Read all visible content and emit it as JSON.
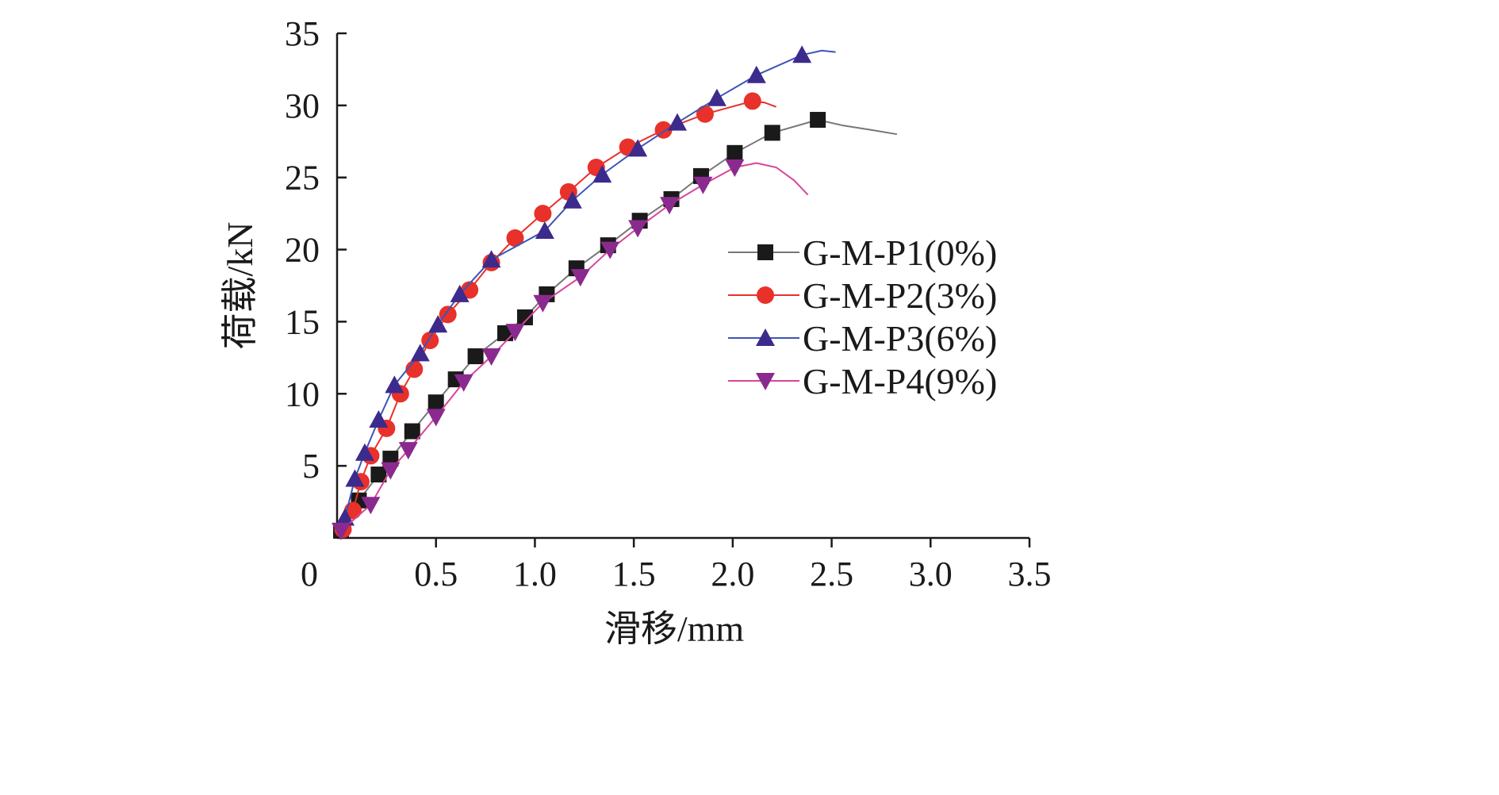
{
  "chart_data": {
    "type": "line",
    "title": "",
    "xlabel": "滑移/mm",
    "ylabel": "荷载/kN",
    "xlim": [
      0,
      3.5
    ],
    "ylim": [
      0,
      35
    ],
    "origin_label": "0",
    "x_ticks": [
      {
        "value": 0.5,
        "label": "0.5"
      },
      {
        "value": 1.0,
        "label": "1.0"
      },
      {
        "value": 1.5,
        "label": "1.5"
      },
      {
        "value": 2.0,
        "label": "2.0"
      },
      {
        "value": 2.5,
        "label": "2.5"
      },
      {
        "value": 3.0,
        "label": "3.0"
      },
      {
        "value": 3.5,
        "label": "3.5"
      }
    ],
    "y_ticks": [
      {
        "value": 5,
        "label": "5"
      },
      {
        "value": 10,
        "label": "10"
      },
      {
        "value": 15,
        "label": "15"
      },
      {
        "value": 20,
        "label": "20"
      },
      {
        "value": 25,
        "label": "25"
      },
      {
        "value": 30,
        "label": "30"
      },
      {
        "value": 35,
        "label": "35"
      }
    ],
    "grid": false,
    "legend_position": "right",
    "series": [
      {
        "name": "G-M-P1(0%)",
        "color": "#1a1a1a",
        "line_color": "#777777",
        "marker": "square",
        "x": [
          0.02,
          0.11,
          0.21,
          0.27,
          0.38,
          0.5,
          0.6,
          0.7,
          0.85,
          0.95,
          1.06,
          1.21,
          1.37,
          1.53,
          1.69,
          1.84,
          2.01,
          2.2,
          2.43
        ],
        "y": [
          0.5,
          2.6,
          4.4,
          5.5,
          7.4,
          9.4,
          11.0,
          12.6,
          14.2,
          15.3,
          16.9,
          18.7,
          20.3,
          22.0,
          23.5,
          25.1,
          26.7,
          28.1,
          29.0
        ],
        "tail_x": [
          2.56,
          2.7,
          2.83
        ],
        "tail_y": [
          28.6,
          28.3,
          28.0
        ]
      },
      {
        "name": "G-M-P2(3%)",
        "color": "#e8312a",
        "line_color": "#e8312a",
        "marker": "circle",
        "x": [
          0.03,
          0.08,
          0.12,
          0.17,
          0.25,
          0.32,
          0.39,
          0.47,
          0.56,
          0.67,
          0.78,
          0.9,
          1.04,
          1.17,
          1.31,
          1.47,
          1.65,
          1.86,
          2.1
        ],
        "y": [
          0.6,
          1.9,
          3.9,
          5.7,
          7.6,
          10.0,
          11.7,
          13.7,
          15.5,
          17.2,
          19.1,
          20.8,
          22.5,
          24.0,
          25.7,
          27.1,
          28.3,
          29.4,
          30.3
        ],
        "tail_x": [
          2.16,
          2.22
        ],
        "tail_y": [
          30.2,
          29.9
        ]
      },
      {
        "name": "G-M-P3(6%)",
        "color": "#3c2a8c",
        "line_color": "#3c55b8",
        "marker": "triangle-up",
        "x": [
          0.04,
          0.09,
          0.14,
          0.21,
          0.29,
          0.42,
          0.51,
          0.62,
          0.78,
          1.05,
          1.19,
          1.34,
          1.52,
          1.72,
          1.92,
          2.12,
          2.35
        ],
        "y": [
          1.4,
          4.1,
          5.9,
          8.2,
          10.6,
          12.8,
          14.8,
          16.9,
          19.3,
          21.3,
          23.4,
          25.2,
          27.0,
          28.8,
          30.5,
          32.1,
          33.5
        ],
        "tail_x": [
          2.45,
          2.52
        ],
        "tail_y": [
          33.8,
          33.7
        ]
      },
      {
        "name": "G-M-P4(9%)",
        "color": "#8b2a8e",
        "line_color": "#d8459a",
        "marker": "triangle-down",
        "x": [
          0.02,
          0.17,
          0.27,
          0.36,
          0.5,
          0.64,
          0.78,
          0.9,
          1.04,
          1.23,
          1.38,
          1.52,
          1.68,
          1.85,
          2.01
        ],
        "y": [
          0.5,
          2.3,
          4.7,
          6.1,
          8.4,
          10.8,
          12.6,
          14.3,
          16.3,
          18.1,
          20.0,
          21.5,
          23.1,
          24.5,
          25.7
        ],
        "tail_x": [
          2.12,
          2.22,
          2.31,
          2.38
        ],
        "tail_y": [
          26.0,
          25.7,
          24.8,
          23.8
        ]
      }
    ]
  }
}
